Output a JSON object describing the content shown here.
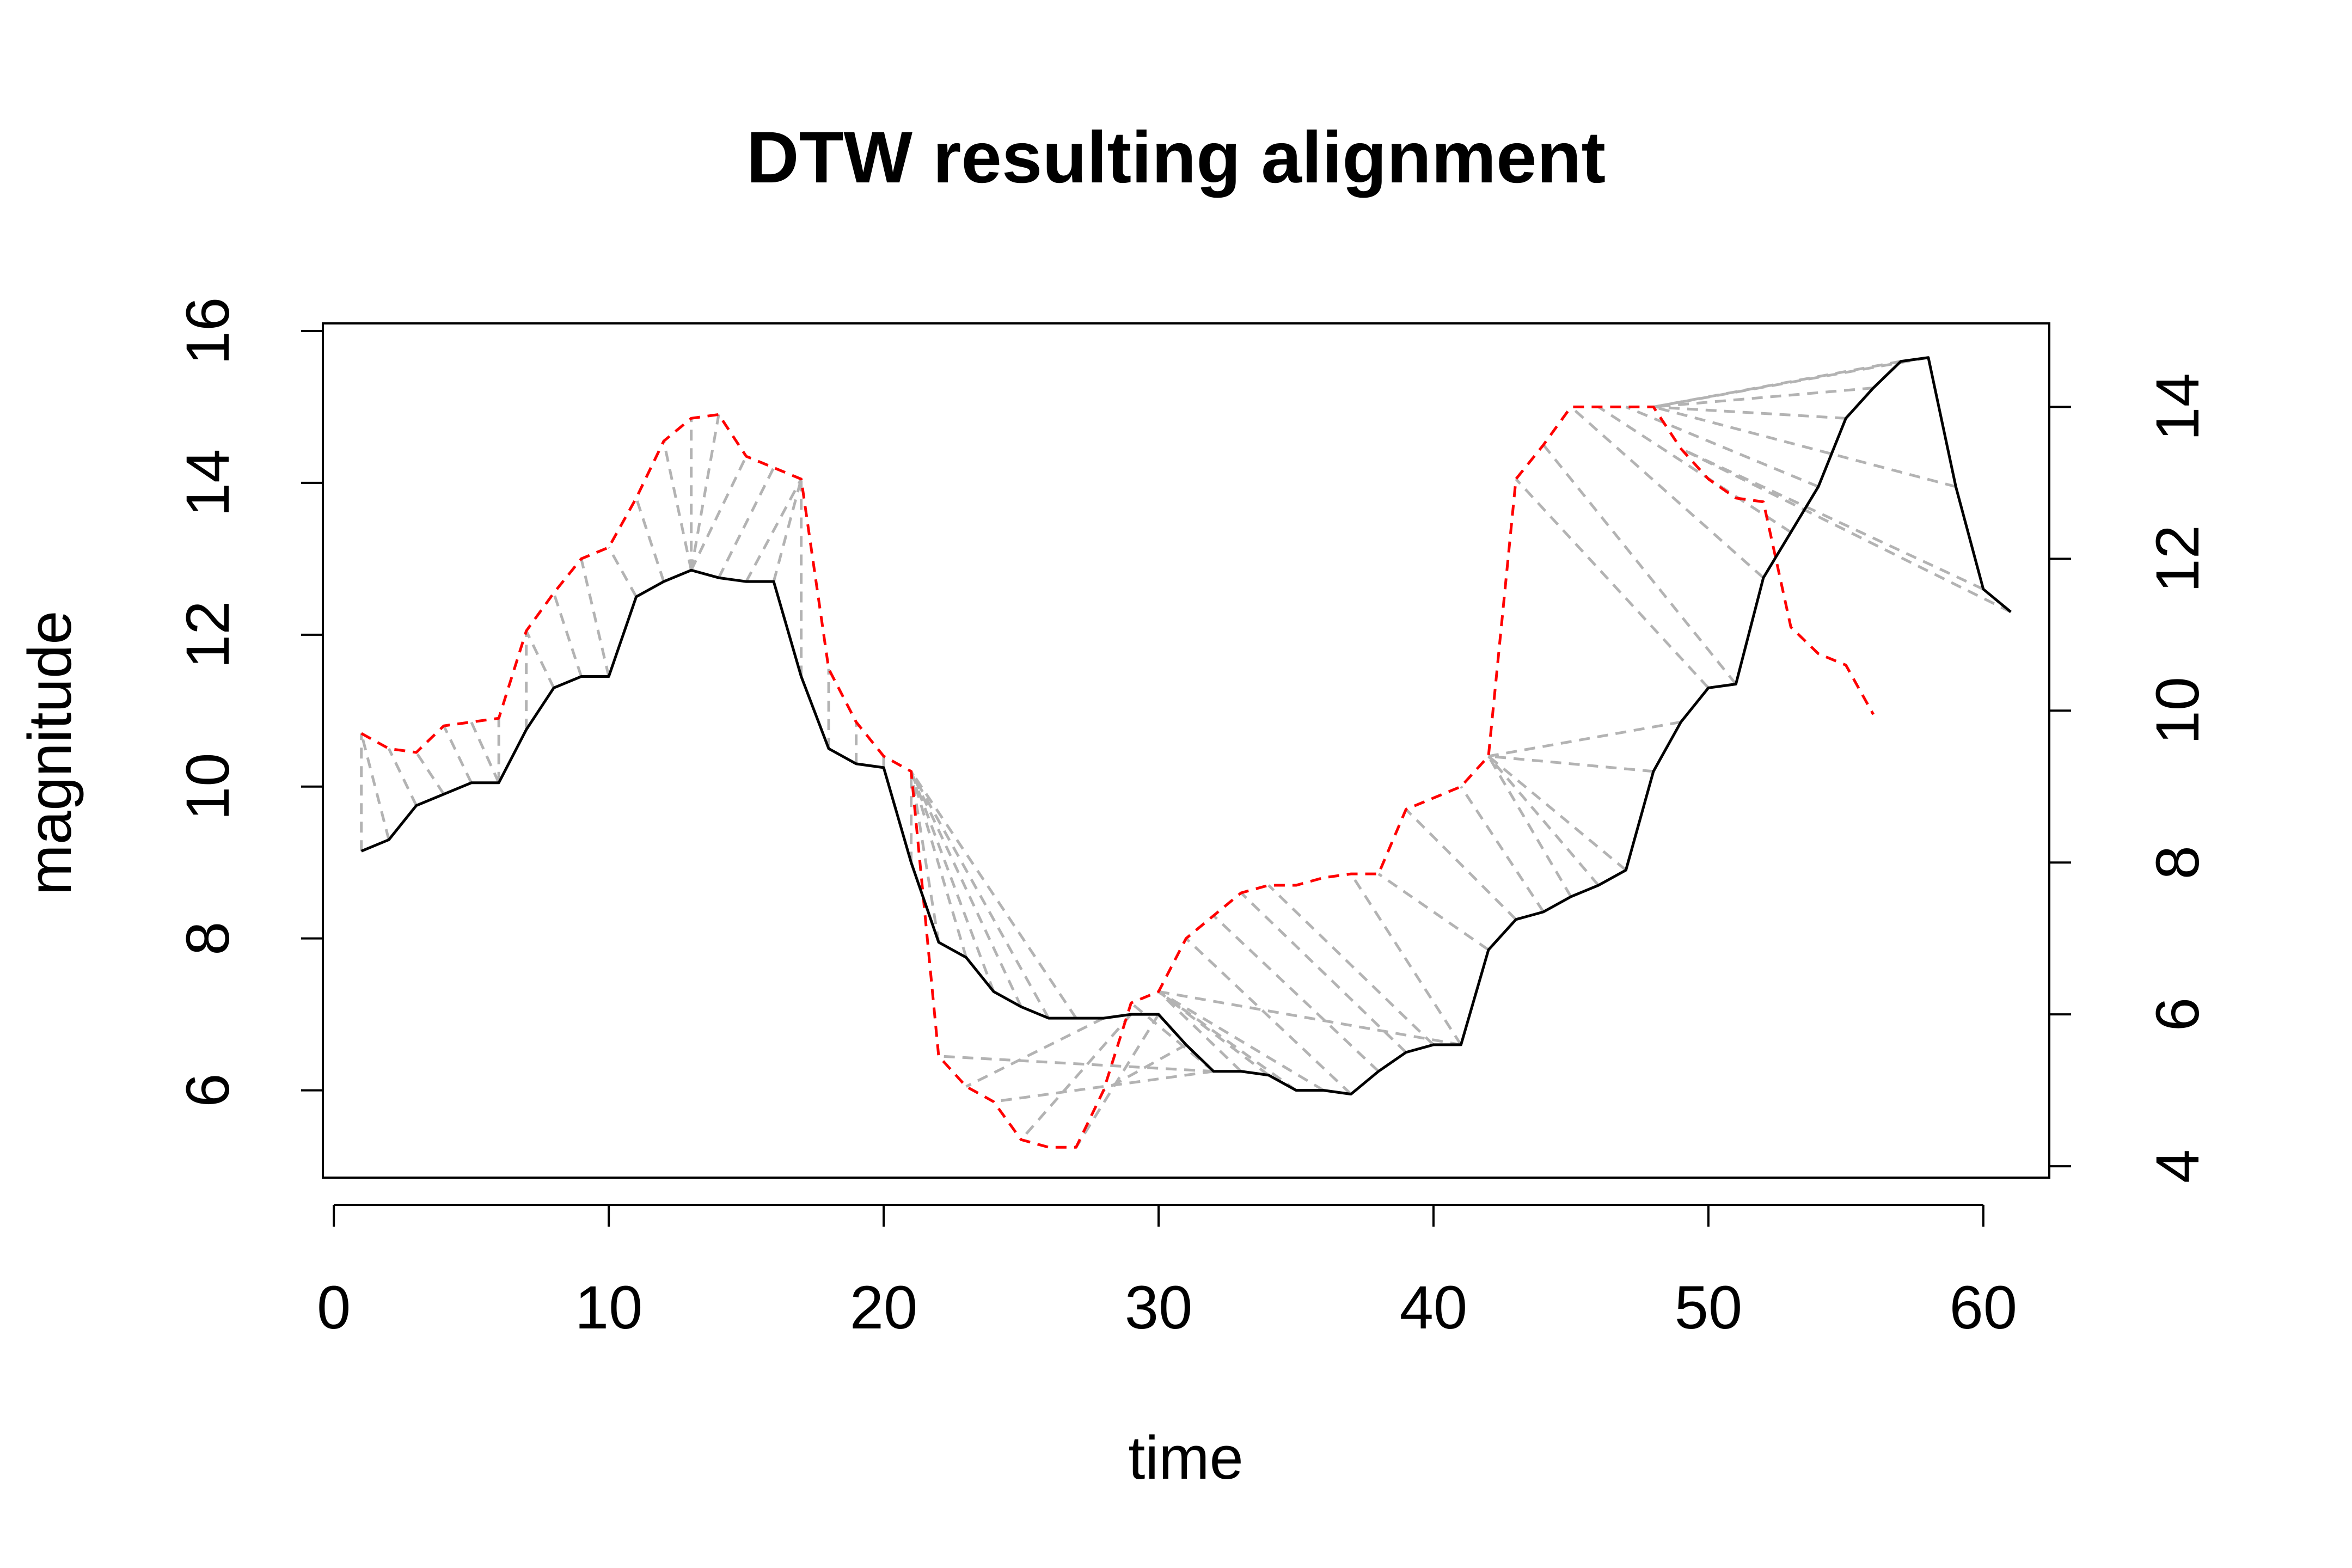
{
  "chart_data": {
    "type": "line",
    "title": "DTW resulting alignment",
    "xlabel": "time",
    "ylabel": "magnitude",
    "xlim": [
      -0.4,
      62.4
    ],
    "ylim": [
      4.85,
      16.1
    ],
    "y2lim": [
      3.85,
      15.1
    ],
    "xticks": [
      0,
      10,
      20,
      30,
      40,
      50,
      60
    ],
    "yticks": [
      6,
      8,
      10,
      12,
      14,
      16
    ],
    "y2ticks": [
      4,
      6,
      8,
      10,
      12,
      14
    ],
    "series": [
      {
        "axis": "left",
        "color": "#000000",
        "style": "solid",
        "x": [
          1,
          2,
          3,
          4,
          5,
          6,
          7,
          8,
          9,
          10,
          11,
          12,
          13,
          14,
          15,
          16,
          17,
          18,
          19,
          20,
          21,
          22,
          23,
          24,
          25,
          26,
          27,
          28,
          29,
          30,
          31,
          32,
          33,
          34,
          35,
          36,
          37,
          38,
          39,
          40,
          41,
          42,
          43,
          44,
          45,
          46,
          47,
          48,
          49,
          50,
          51,
          52,
          53,
          54,
          55,
          56,
          57,
          58,
          59,
          60,
          61
        ],
        "values": [
          9.15,
          9.3,
          9.75,
          9.9,
          10.05,
          10.05,
          10.75,
          11.3,
          11.45,
          11.45,
          12.5,
          12.7,
          12.85,
          12.75,
          12.7,
          12.7,
          11.45,
          10.5,
          10.3,
          10.25,
          9.0,
          7.95,
          7.75,
          7.3,
          7.1,
          6.95,
          6.95,
          6.95,
          7.0,
          7.0,
          6.6,
          6.25,
          6.25,
          6.2,
          6.0,
          6.0,
          5.95,
          6.25,
          6.5,
          6.6,
          6.6,
          7.85,
          8.25,
          8.35,
          8.55,
          8.7,
          8.9,
          10.2,
          10.85,
          11.3,
          11.35,
          12.75,
          13.35,
          13.95,
          14.85,
          15.25,
          15.6,
          15.65,
          13.95,
          12.6,
          12.3
        ]
      },
      {
        "axis": "right",
        "color": "#ff0000",
        "style": "dashed",
        "x": [
          1,
          2,
          3,
          4,
          5,
          6,
          7,
          8,
          9,
          10,
          11,
          12,
          13,
          14,
          15,
          16,
          17,
          18,
          19,
          20,
          21,
          22,
          23,
          24,
          25,
          26,
          27,
          28,
          29,
          30,
          31,
          32,
          33,
          34,
          35,
          36,
          37,
          38,
          39,
          40,
          41,
          42,
          43,
          44,
          45,
          46,
          47,
          48,
          49,
          50,
          51,
          52,
          53,
          54,
          55,
          56
        ],
        "values": [
          9.7,
          9.5,
          9.45,
          9.8,
          9.85,
          9.9,
          11.05,
          11.55,
          12.0,
          12.15,
          12.8,
          13.55,
          13.85,
          13.9,
          13.35,
          13.2,
          13.05,
          10.55,
          9.85,
          9.4,
          9.2,
          5.45,
          5.05,
          4.85,
          4.35,
          4.25,
          4.25,
          5.0,
          6.15,
          6.3,
          7.0,
          7.3,
          7.6,
          7.7,
          7.7,
          7.8,
          7.85,
          7.85,
          8.7,
          8.85,
          9.0,
          9.4,
          13.05,
          13.5,
          14.0,
          14.0,
          14.0,
          14.0,
          13.45,
          13.05,
          12.8,
          12.75,
          11.1,
          10.75,
          10.6,
          9.95
        ]
      },
      {
        "name": "alignment",
        "color": "#b3b3b3",
        "style": "dashed",
        "pairs": [
          [
            1,
            1
          ],
          [
            2,
            1
          ],
          [
            3,
            2
          ],
          [
            4,
            3
          ],
          [
            5,
            4
          ],
          [
            6,
            5
          ],
          [
            6,
            6
          ],
          [
            7,
            7
          ],
          [
            8,
            7
          ],
          [
            9,
            8
          ],
          [
            10,
            9
          ],
          [
            11,
            10
          ],
          [
            12,
            11
          ],
          [
            13,
            12
          ],
          [
            13,
            13
          ],
          [
            13,
            14
          ],
          [
            13,
            15
          ],
          [
            14,
            16
          ],
          [
            15,
            17
          ],
          [
            16,
            17
          ],
          [
            17,
            17
          ],
          [
            18,
            18
          ],
          [
            19,
            19
          ],
          [
            20,
            20
          ],
          [
            21,
            21
          ],
          [
            22,
            21
          ],
          [
            23,
            21
          ],
          [
            24,
            21
          ],
          [
            25,
            21
          ],
          [
            26,
            21
          ],
          [
            27,
            21
          ],
          [
            28,
            23
          ],
          [
            29,
            25
          ],
          [
            30,
            27
          ],
          [
            31,
            28
          ],
          [
            32,
            22
          ],
          [
            32,
            24
          ],
          [
            32,
            29
          ],
          [
            33,
            30
          ],
          [
            34,
            30
          ],
          [
            35,
            30
          ],
          [
            36,
            30
          ],
          [
            37,
            31
          ],
          [
            38,
            32
          ],
          [
            39,
            33
          ],
          [
            40,
            34
          ],
          [
            41,
            30
          ],
          [
            41,
            37
          ],
          [
            42,
            38
          ],
          [
            43,
            39
          ],
          [
            44,
            41
          ],
          [
            45,
            42
          ],
          [
            46,
            42
          ],
          [
            47,
            42
          ],
          [
            48,
            42
          ],
          [
            49,
            42
          ],
          [
            50,
            43
          ],
          [
            51,
            44
          ],
          [
            52,
            45
          ],
          [
            53,
            46
          ],
          [
            54,
            47
          ],
          [
            55,
            48
          ],
          [
            56,
            48
          ],
          [
            57,
            48
          ],
          [
            58,
            48
          ],
          [
            59,
            48
          ],
          [
            60,
            49
          ],
          [
            61,
            49
          ]
        ]
      }
    ]
  }
}
